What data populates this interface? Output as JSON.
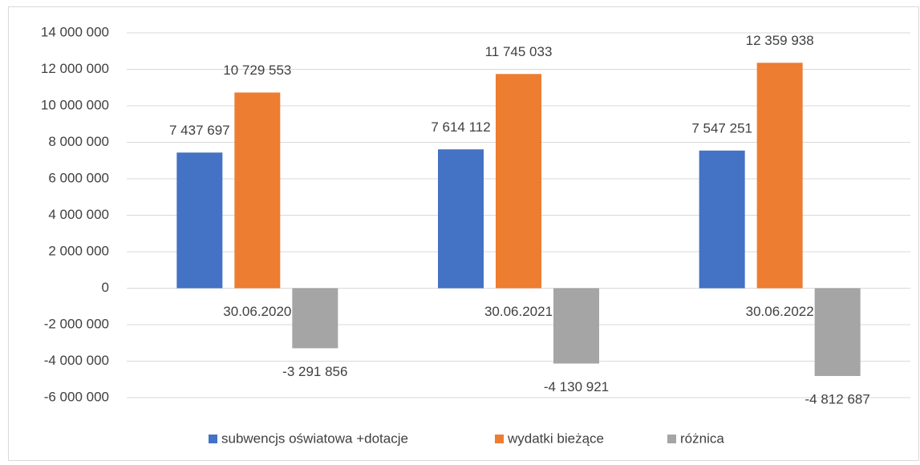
{
  "chart_data": {
    "type": "bar",
    "categories": [
      "30.06.2020",
      "30.06.2021",
      "30.06.2022"
    ],
    "series": [
      {
        "name": "subwencjs oświatowa +dotacje",
        "color": "#4472c4",
        "values": [
          7437697,
          7614112,
          7547251
        ],
        "value_labels": [
          "7 437 697",
          "7 614 112",
          "7 547 251"
        ]
      },
      {
        "name": "wydatki bieżące",
        "color": "#ed7d31",
        "values": [
          10729553,
          11745033,
          12359938
        ],
        "value_labels": [
          "10 729 553",
          "11 745 033",
          "12 359 938"
        ]
      },
      {
        "name": "różnica",
        "color": "#a5a5a5",
        "values": [
          -3291856,
          -4130921,
          -4812687
        ],
        "value_labels": [
          "-3 291 856",
          "-4 130 921",
          "-4 812 687"
        ]
      }
    ],
    "ylim": [
      -6000000,
      14000000
    ],
    "yticks": [
      {
        "value": -6000000,
        "label": "-6 000 000"
      },
      {
        "value": -4000000,
        "label": "-4 000 000"
      },
      {
        "value": -2000000,
        "label": "-2 000 000"
      },
      0,
      {
        "value": 2000000,
        "label": "2 000 000"
      },
      {
        "value": 4000000,
        "label": "4 000 000"
      },
      {
        "value": 6000000,
        "label": "6 000 000"
      },
      {
        "value": 8000000,
        "label": "8 000 000"
      },
      {
        "value": 10000000,
        "label": "10 000 000"
      },
      {
        "value": 12000000,
        "label": "12 000 000"
      },
      {
        "value": 14000000,
        "label": "14 000 000"
      }
    ],
    "grid": true,
    "legend": "bottom"
  }
}
